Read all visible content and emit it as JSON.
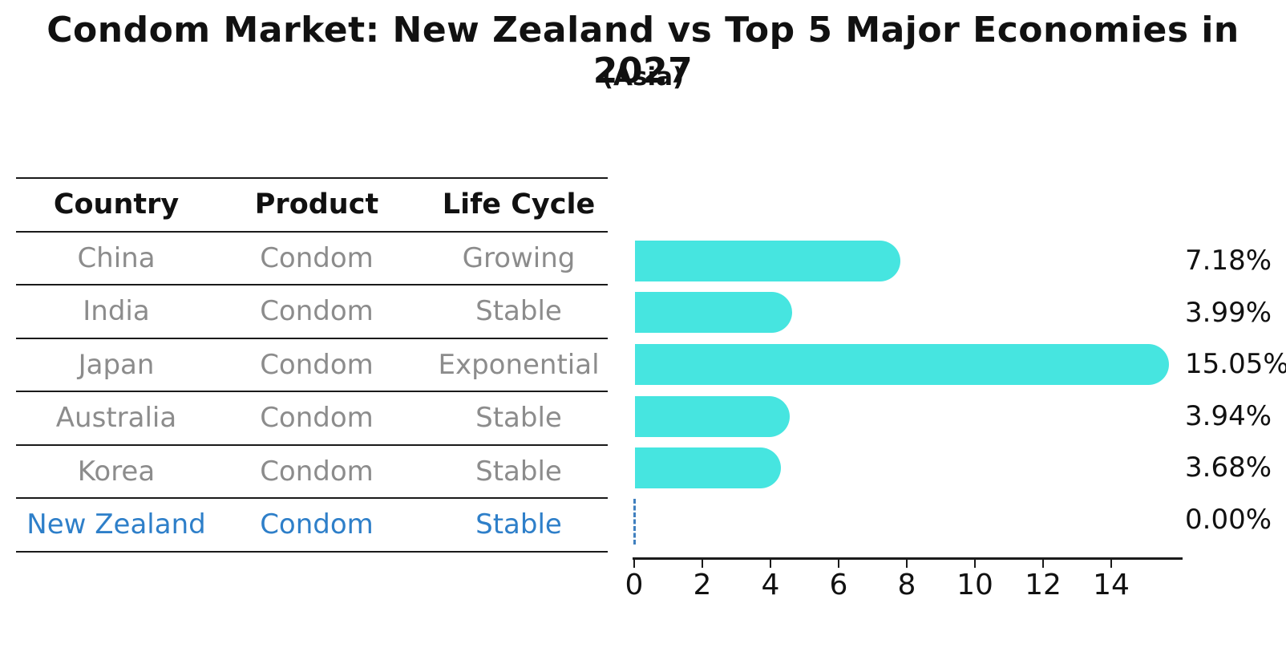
{
  "title": "Condom Market: New Zealand vs Top 5 Major Economies in 2027",
  "subtitle": "(Asia)",
  "table": {
    "headers": [
      "Country",
      "Product",
      "Life Cycle"
    ],
    "rows": [
      {
        "country": "China",
        "product": "Condom",
        "life_cycle": "Growing",
        "highlight": false
      },
      {
        "country": "India",
        "product": "Condom",
        "life_cycle": "Stable",
        "highlight": false
      },
      {
        "country": "Japan",
        "product": "Condom",
        "life_cycle": "Exponential",
        "highlight": false
      },
      {
        "country": "Australia",
        "product": "Condom",
        "life_cycle": "Stable",
        "highlight": false
      },
      {
        "country": "Korea",
        "product": "Condom",
        "life_cycle": "Stable",
        "highlight": false
      },
      {
        "country": "New Zealand",
        "product": "Condom",
        "life_cycle": "Stable",
        "highlight": true
      }
    ]
  },
  "chart_data": {
    "type": "bar",
    "orientation": "horizontal",
    "title": "Condom Market: New Zealand vs Top 5 Major Economies in 2027",
    "subtitle": "(Asia)",
    "categories": [
      "China",
      "India",
      "Japan",
      "Australia",
      "Korea",
      "New Zealand"
    ],
    "values": [
      7.18,
      3.99,
      15.05,
      3.94,
      3.68,
      0.0
    ],
    "value_labels": [
      "7.18%",
      "3.99%",
      "15.05%",
      "3.94%",
      "3.68%",
      "0.00%"
    ],
    "xlabel": "",
    "ylabel": "",
    "x_ticks": [
      "0",
      "2",
      "4",
      "6",
      "8",
      "10",
      "12",
      "14"
    ],
    "xlim": [
      0,
      16
    ],
    "grid": false,
    "legend": "none",
    "bar_style": "rounded-end",
    "zero_value_marker": "blue-dashed-line"
  },
  "colors": {
    "bar": "#46E5E0",
    "highlight": "#2E7FC9",
    "row-text": "#8C8C8C",
    "heading-text": "#111111",
    "line": "#1A1A1A",
    "zero-dash": "#4080BF",
    "background": "#FFFFFF"
  }
}
